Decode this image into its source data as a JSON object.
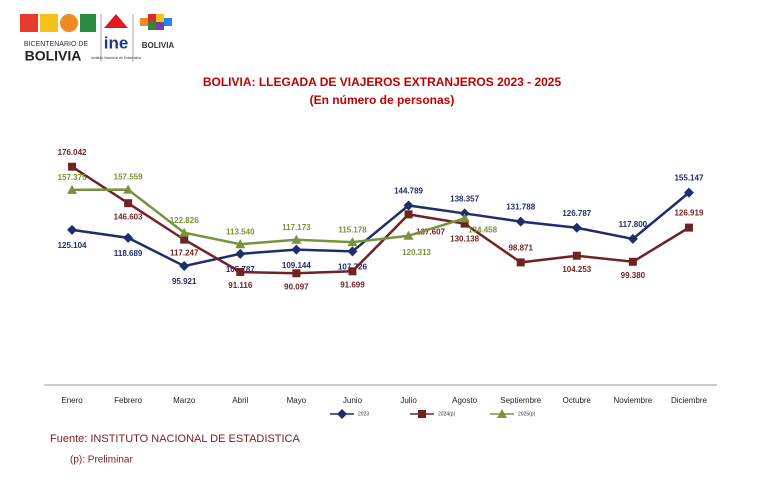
{
  "logos": {
    "bicentenario_top": "BICENTENARIO DE",
    "bicentenario_main": "BOLIVIA",
    "ine": "ine",
    "ine_sub": "Instituto Nacional de Estadística",
    "estado": "BOLIVIA"
  },
  "chart_data": {
    "type": "line",
    "title": "BOLIVIA: LLEGADA DE VIAJEROS EXTRANJEROS 2023 - 2025",
    "subtitle": "(En número de personas)",
    "categories": [
      "Enero",
      "Febrero",
      "Marzo",
      "Abril",
      "Mayo",
      "Junio",
      "Julio",
      "Agosto",
      "Septiembre",
      "Octubre",
      "Noviembre",
      "Diciembre"
    ],
    "ylim": [
      0,
      250000
    ],
    "series": [
      {
        "name": "2023",
        "color": "#1f2d6b",
        "marker": "diamond",
        "values": [
          125104,
          118689,
          95921,
          105787,
          109144,
          107726,
          144789,
          138357,
          131788,
          126787,
          117800,
          155147
        ],
        "value_labels": [
          "125.104",
          "118.689",
          "95.921",
          "105.787",
          "109.144",
          "107.726",
          "144.789",
          "138.357",
          "131.788",
          "126.787",
          "117.800",
          "155.147"
        ]
      },
      {
        "name": "2024(p)",
        "color": "#6e2424",
        "marker": "square",
        "values": [
          176042,
          146603,
          117247,
          91116,
          90097,
          91699,
          137607,
          130138,
          98871,
          104253,
          99380,
          126919
        ],
        "value_labels": [
          "176.042",
          "146.603",
          "117.247",
          "91.116",
          "90.097",
          "91.699",
          "137.607",
          "130.138",
          "98.871",
          "104.253",
          "99.380",
          "126.919"
        ]
      },
      {
        "name": "2025(p)",
        "color": "#77933c",
        "marker": "triangle",
        "values": [
          157375,
          157559,
          122826,
          113540,
          117173,
          115178,
          120313,
          134458,
          null,
          null,
          null,
          null
        ],
        "value_labels": [
          "157.375",
          "157.559",
          "122.826",
          "113.540",
          "117.173",
          "115.178",
          "120.313",
          "134.458",
          null,
          null,
          null,
          null
        ]
      }
    ],
    "source": "Fuente: INSTITUTO NACIONAL DE ESTADISTICA",
    "note": "(p): Preliminar"
  }
}
